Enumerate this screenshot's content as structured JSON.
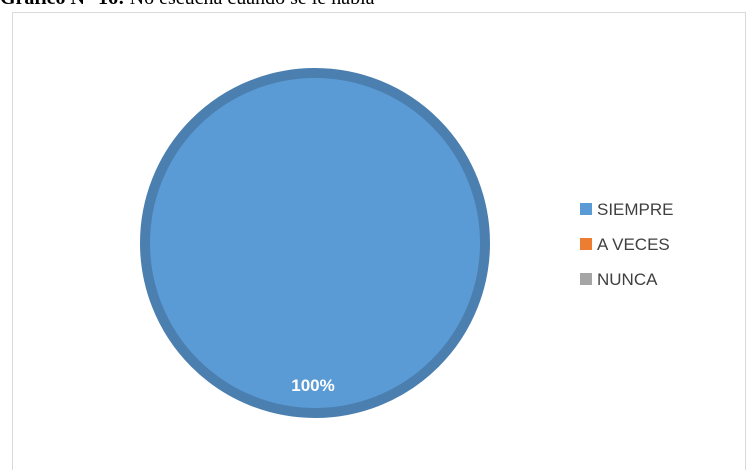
{
  "caption": {
    "prefix": "Gráfico N° 16:",
    "text": " No escucha cuando se le habla"
  },
  "chart_data": {
    "type": "pie",
    "title": "",
    "categories": [
      "SIEMPRE",
      "A VECES",
      "NUNCA"
    ],
    "values": [
      100,
      0,
      0
    ],
    "data_labels": [
      "100%"
    ],
    "colors": [
      "#5B9BD5",
      "#ED7D31",
      "#A5A5A5"
    ],
    "legend": "right"
  }
}
